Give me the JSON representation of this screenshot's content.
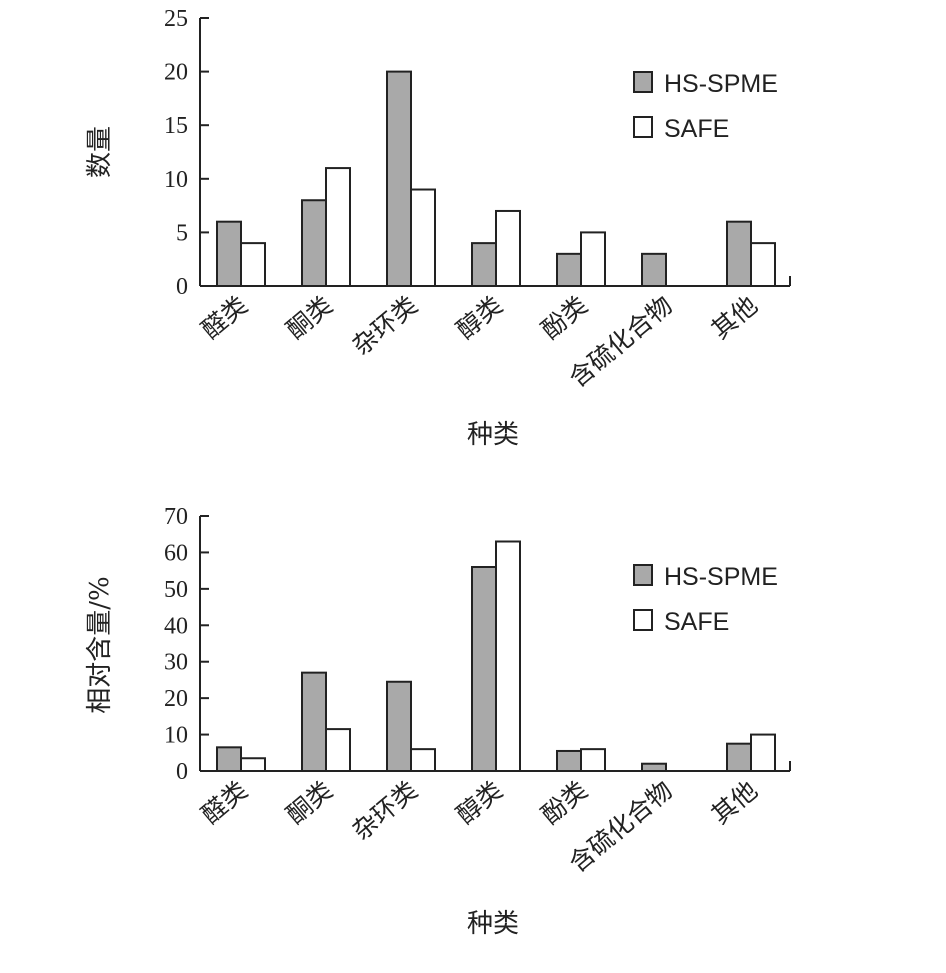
{
  "chart_data": [
    {
      "type": "bar",
      "categories": [
        "醛类",
        "酮类",
        "杂环类",
        "醇类",
        "酚类",
        "含硫化合物",
        "其他"
      ],
      "series": [
        {
          "name": "HS-SPME",
          "color": "#a9a9a9",
          "values": [
            6,
            8,
            20,
            4,
            3,
            3,
            6
          ]
        },
        {
          "name": "SAFE",
          "color": "#ffffff",
          "values": [
            4,
            11,
            9,
            7,
            5,
            0,
            4
          ]
        }
      ],
      "xlabel": "种类",
      "ylabel": "数量",
      "ylim": [
        0,
        25
      ],
      "yticks": [
        0,
        5,
        10,
        15,
        20,
        25
      ],
      "grid": false,
      "legend_position": "top-right"
    },
    {
      "type": "bar",
      "categories": [
        "醛类",
        "酮类",
        "杂环类",
        "醇类",
        "酚类",
        "含硫化合物",
        "其他"
      ],
      "series": [
        {
          "name": "HS-SPME",
          "color": "#a9a9a9",
          "values": [
            6.5,
            27,
            24.5,
            56,
            5.5,
            2,
            7.5
          ]
        },
        {
          "name": "SAFE",
          "color": "#ffffff",
          "values": [
            3.5,
            11.5,
            6,
            63,
            6,
            0,
            10
          ]
        }
      ],
      "xlabel": "种类",
      "ylabel": "相对含量/%",
      "ylim": [
        0,
        70
      ],
      "yticks": [
        0,
        10,
        20,
        30,
        40,
        50,
        60,
        70
      ],
      "grid": false,
      "legend_position": "top-right"
    }
  ]
}
